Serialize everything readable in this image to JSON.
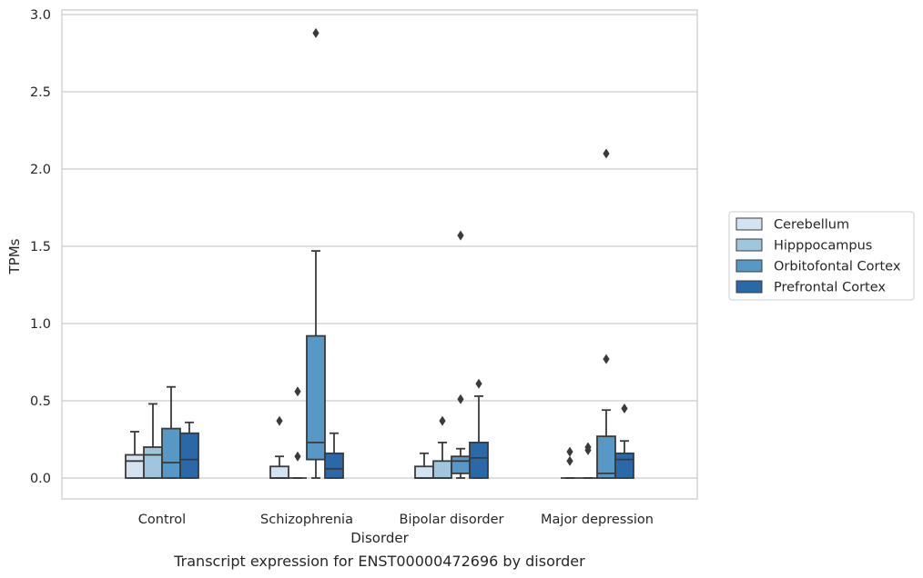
{
  "chart_data": {
    "type": "box",
    "xlabel": "Disorder",
    "ylabel": "TPMs",
    "caption": "Transcript expression for ENST00000472696 by disorder",
    "ylim": [
      -0.14,
      3.03
    ],
    "yticks": [
      "0.0",
      "0.5",
      "1.0",
      "1.5",
      "2.0",
      "2.5",
      "3.0"
    ],
    "grid": "horizontal",
    "legend_position": "right",
    "categories": [
      "Control",
      "Schizophrenia",
      "Bipolar disorder",
      "Major depression"
    ],
    "series": [
      {
        "name": "Cerebellum",
        "color": "#d3e3f2",
        "boxes": [
          {
            "whislo": 0.0,
            "q1": 0.0,
            "med": 0.11,
            "q3": 0.15,
            "whishi": 0.3,
            "fliers": []
          },
          {
            "whislo": 0.0,
            "q1": 0.0,
            "med": 0.0,
            "q3": 0.075,
            "whishi": 0.14,
            "fliers": [
              0.37
            ]
          },
          {
            "whislo": 0.0,
            "q1": 0.0,
            "med": 0.0,
            "q3": 0.075,
            "whishi": 0.16,
            "fliers": []
          },
          {
            "whislo": 0.0,
            "q1": 0.0,
            "med": 0.0,
            "q3": 0.0,
            "whishi": 0.0,
            "fliers": [
              0.11,
              0.17
            ]
          }
        ]
      },
      {
        "name": "Hipppocampus",
        "color": "#9ec6dd",
        "boxes": [
          {
            "whislo": 0.0,
            "q1": 0.0,
            "med": 0.15,
            "q3": 0.2,
            "whishi": 0.48,
            "fliers": []
          },
          {
            "whislo": 0.0,
            "q1": 0.0,
            "med": 0.0,
            "q3": 0.0,
            "whishi": 0.0,
            "fliers": [
              0.14,
              0.56
            ]
          },
          {
            "whislo": 0.0,
            "q1": 0.0,
            "med": 0.0,
            "q3": 0.11,
            "whishi": 0.23,
            "fliers": [
              0.37
            ]
          },
          {
            "whislo": 0.0,
            "q1": 0.0,
            "med": 0.0,
            "q3": 0.0,
            "whishi": 0.0,
            "fliers": [
              0.18,
              0.2
            ]
          }
        ]
      },
      {
        "name": "Orbitofontal Cortex",
        "color": "#5898c6",
        "boxes": [
          {
            "whislo": 0.0,
            "q1": 0.0,
            "med": 0.1,
            "q3": 0.32,
            "whishi": 0.59,
            "fliers": []
          },
          {
            "whislo": 0.0,
            "q1": 0.12,
            "med": 0.23,
            "q3": 0.92,
            "whishi": 1.47,
            "fliers": [
              2.88
            ]
          },
          {
            "whislo": 0.0,
            "q1": 0.03,
            "med": 0.11,
            "q3": 0.14,
            "whishi": 0.19,
            "fliers": [
              0.51,
              1.57
            ]
          },
          {
            "whislo": 0.0,
            "q1": 0.0,
            "med": 0.03,
            "q3": 0.27,
            "whishi": 0.44,
            "fliers": [
              0.77,
              2.1
            ]
          }
        ]
      },
      {
        "name": "Prefrontal Cortex",
        "color": "#2a68a8",
        "boxes": [
          {
            "whislo": 0.0,
            "q1": 0.0,
            "med": 0.12,
            "q3": 0.29,
            "whishi": 0.36,
            "fliers": []
          },
          {
            "whislo": 0.0,
            "q1": 0.0,
            "med": 0.06,
            "q3": 0.16,
            "whishi": 0.29,
            "fliers": []
          },
          {
            "whislo": 0.0,
            "q1": 0.0,
            "med": 0.13,
            "q3": 0.23,
            "whishi": 0.53,
            "fliers": [
              0.61
            ]
          },
          {
            "whislo": 0.0,
            "q1": 0.0,
            "med": 0.12,
            "q3": 0.16,
            "whishi": 0.24,
            "fliers": [
              0.45
            ]
          }
        ]
      }
    ]
  }
}
